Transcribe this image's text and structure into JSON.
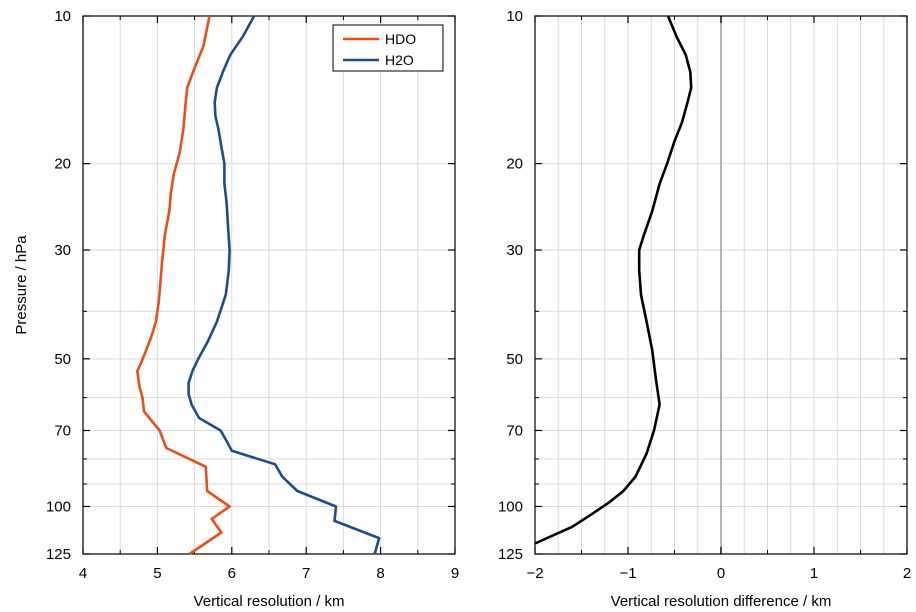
{
  "chart_data": [
    {
      "type": "line",
      "xlabel": "Vertical resolution / km",
      "ylabel": "Pressure / hPa",
      "xlim": [
        4,
        9
      ],
      "ylim": [
        125,
        10
      ],
      "yscale": "log",
      "y_inverted": true,
      "grid": true,
      "legend_position": "top-right",
      "x_ticks": [
        "4",
        "5",
        "6",
        "7",
        "8",
        "9"
      ],
      "y_ticks": [
        "10",
        "20",
        "30",
        "50",
        "70",
        "100",
        "125"
      ],
      "y_ticks_values": [
        10,
        20,
        30,
        50,
        70,
        100,
        125
      ],
      "series": [
        {
          "name": "HDO",
          "color": "#e8501a",
          "x": [
            5.7,
            5.62,
            5.48,
            5.4,
            5.38,
            5.35,
            5.3,
            5.22,
            5.18,
            5.16,
            5.1,
            5.06,
            5.04,
            5.02,
            4.98,
            4.92,
            4.85,
            4.78,
            4.73,
            4.76,
            4.8,
            4.82,
            5.03,
            5.12,
            5.65,
            5.66,
            5.67,
            5.97,
            5.73,
            5.86,
            5.43
          ],
          "y": [
            10,
            11.5,
            13,
            14,
            15,
            17,
            19,
            21,
            23,
            25,
            28,
            32,
            35,
            38,
            42,
            45,
            48,
            51,
            53,
            57,
            60,
            64,
            70,
            76,
            83,
            88,
            93,
            100,
            106,
            113,
            125
          ]
        },
        {
          "name": "H2O",
          "color": "#1c4f8a",
          "x": [
            6.3,
            6.15,
            5.98,
            5.88,
            5.8,
            5.77,
            5.78,
            5.82,
            5.86,
            5.9,
            5.9,
            5.93,
            5.95,
            5.97,
            5.96,
            5.92,
            5.8,
            5.68,
            5.55,
            5.47,
            5.42,
            5.42,
            5.46,
            5.56,
            5.85,
            5.94,
            6.0,
            6.58,
            6.68,
            6.88,
            7.4,
            7.38,
            7.98,
            7.92
          ],
          "y": [
            10,
            11,
            12,
            13,
            14,
            15,
            16,
            17,
            18.5,
            20,
            22,
            24,
            27,
            30,
            33,
            37,
            42,
            46,
            50,
            53,
            56,
            59,
            62,
            66,
            70,
            74,
            77,
            82,
            87,
            93,
            100,
            107,
            116,
            125
          ]
        }
      ]
    },
    {
      "type": "line",
      "xlabel": "Vertical resolution difference / km",
      "ylabel": "",
      "xlim": [
        -2,
        2
      ],
      "ylim": [
        125,
        10
      ],
      "yscale": "log",
      "y_inverted": true,
      "grid": true,
      "zero_line": true,
      "x_ticks": [
        "−2",
        "−1",
        "0",
        "1",
        "2"
      ],
      "x_ticks_values": [
        -2,
        -1,
        0,
        1,
        2
      ],
      "y_ticks": [
        "10",
        "20",
        "30",
        "50",
        "70",
        "100",
        "125"
      ],
      "y_ticks_values": [
        10,
        20,
        30,
        50,
        70,
        100,
        125
      ],
      "series": [
        {
          "color": "#000000",
          "x": [
            -0.57,
            -0.48,
            -0.38,
            -0.33,
            -0.32,
            -0.36,
            -0.42,
            -0.5,
            -0.58,
            -0.66,
            -0.74,
            -0.83,
            -0.88,
            -0.88,
            -0.86,
            -0.8,
            -0.74,
            -0.7,
            -0.66,
            -0.72,
            -0.8,
            -0.92,
            -1.05,
            -1.2,
            -1.4,
            -1.6,
            -2.0
          ],
          "y": [
            10,
            11,
            12,
            13,
            14,
            15,
            16.5,
            18,
            20,
            22,
            25,
            28,
            30,
            33,
            37,
            42,
            48,
            55,
            62,
            70,
            78,
            87,
            93,
            98,
            104,
            110,
            119
          ]
        }
      ]
    }
  ]
}
